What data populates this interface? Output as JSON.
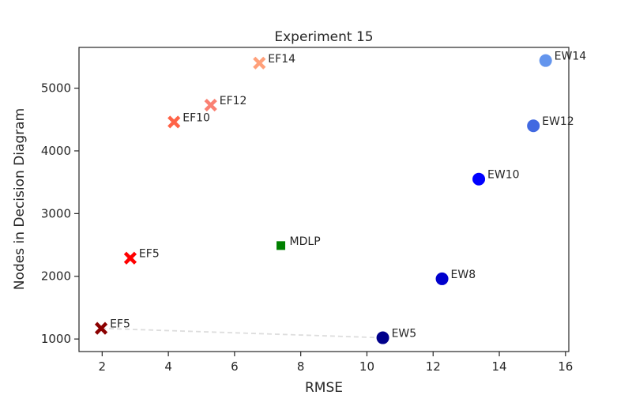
{
  "chart_data": {
    "type": "scatter",
    "title": "Experiment 15",
    "xlabel": "RMSE",
    "ylabel": "Nodes in Decision Diagram",
    "xlim": [
      1.3,
      16.1
    ],
    "ylim": [
      800,
      5650
    ],
    "xticks": [
      2,
      4,
      6,
      8,
      10,
      12,
      14,
      16
    ],
    "yticks": [
      1000,
      2000,
      3000,
      4000,
      5000
    ],
    "grid": false,
    "points": [
      {
        "label": "EF5",
        "x": 1.97,
        "y": 1170,
        "marker": "x",
        "color": "#8b0000"
      },
      {
        "label": "EF5",
        "x": 2.85,
        "y": 2290,
        "marker": "x",
        "color": "#ff0000"
      },
      {
        "label": "EF10",
        "x": 4.17,
        "y": 4460,
        "marker": "x",
        "color": "#ff6347"
      },
      {
        "label": "EF12",
        "x": 5.28,
        "y": 4730,
        "marker": "x",
        "color": "#fa8072"
      },
      {
        "label": "EF14",
        "x": 6.75,
        "y": 5400,
        "marker": "x",
        "color": "#ffa07a"
      },
      {
        "label": "MDLP",
        "x": 7.4,
        "y": 2490,
        "marker": "square",
        "color": "#008000"
      },
      {
        "label": "EW5",
        "x": 10.48,
        "y": 1020,
        "marker": "circle",
        "color": "#00008b"
      },
      {
        "label": "EW8",
        "x": 12.27,
        "y": 1960,
        "marker": "circle",
        "color": "#0000cd"
      },
      {
        "label": "EW10",
        "x": 13.38,
        "y": 3550,
        "marker": "circle",
        "color": "#0000ff"
      },
      {
        "label": "EW12",
        "x": 15.03,
        "y": 4400,
        "marker": "circle",
        "color": "#4169e1"
      },
      {
        "label": "EW14",
        "x": 15.4,
        "y": 5440,
        "marker": "circle",
        "color": "#6495ed"
      }
    ],
    "connector": {
      "from": [
        1.97,
        1170
      ],
      "to": [
        10.48,
        1020
      ],
      "style": "dashed",
      "color": "#dddddd"
    }
  }
}
